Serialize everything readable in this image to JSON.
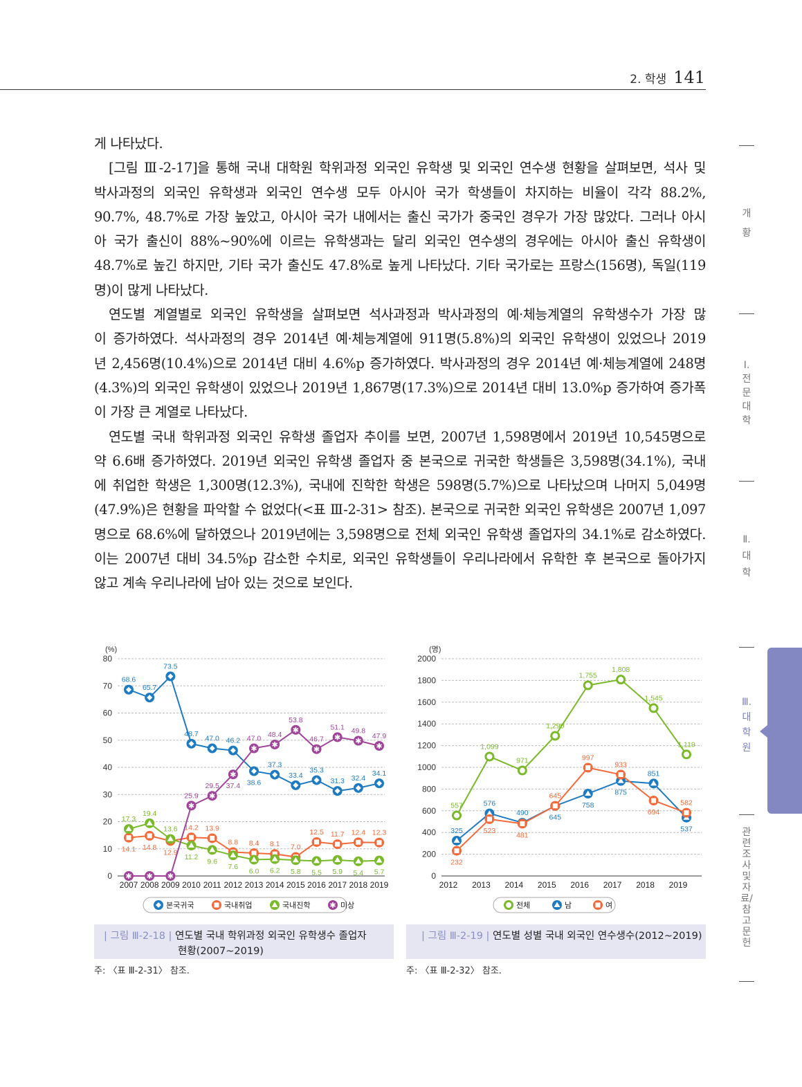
{
  "header": {
    "section": "2. 학생",
    "page_number": "141"
  },
  "body": {
    "lines": [
      {
        "text": "게 나타났다.",
        "last": true
      },
      {
        "text": "[그림 Ⅲ-2-17]을 통해 국내 대학원 학위과정 외국인 유학생 및 외국인 연수생 현황을 살펴보면, 석사 및",
        "indent": true
      },
      {
        "text": "박사과정의 외국인 유학생과 외국인 연수생 모두 아시아 국가 학생들이 차지하는 비율이 각각 88.2%,"
      },
      {
        "text": "90.7%, 48.7%로 가장 높았고, 아시아 국가 내에서는 출신 국가가 중국인 경우가 가장 많았다. 그러나 아시"
      },
      {
        "text": "아 국가 출신이 88%~90%에 이르는 유학생과는 달리 외국인 연수생의 경우에는 아시아 출신 유학생이"
      },
      {
        "text": "48.7%로 높긴 하지만, 기타 국가 출신도 47.8%로 높게 나타났다. 기타 국가로는 프랑스(156명), 독일(119"
      },
      {
        "text": "명)이 많게 나타났다.",
        "last": true
      },
      {
        "text": "연도별 계열별로 외국인 유학생을 살펴보면 석사과정과 박사과정의 예·체능계열의 유학생수가 가장 많",
        "indent": true
      },
      {
        "text": "이 증가하였다. 석사과정의 경우 2014년 예·체능계열에 911명(5.8%)의 외국인 유학생이 있었으나 2019"
      },
      {
        "text": "년 2,456명(10.4%)으로 2014년 대비 4.6%p 증가하였다. 박사과정의 경우 2014년 예·체능계열에 248명"
      },
      {
        "text": "(4.3%)의 외국인 유학생이 있었으나 2019년 1,867명(17.3%)으로 2014년 대비 13.0%p 증가하여 증가폭"
      },
      {
        "text": "이 가장 큰 계열로 나타났다.",
        "last": true
      },
      {
        "text": "연도별 국내 학위과정 외국인 유학생 졸업자 추이를 보면, 2007년 1,598명에서 2019년 10,545명으로",
        "indent": true
      },
      {
        "text": "약 6.6배 증가하였다. 2019년 외국인 유학생 졸업자 중 본국으로 귀국한 학생들은 3,598명(34.1%), 국내"
      },
      {
        "text": "에 취업한 학생은 1,300명(12.3%), 국내에 진학한 학생은 598명(5.7%)으로 나타났으며 나머지 5,049명"
      },
      {
        "text": "(47.9%)은 현황을 파악할 수 없었다(<표 Ⅲ-2-31> 참조). 본국으로 귀국한 외국인 유학생은 2007년 1,097"
      },
      {
        "text": "명으로 68.6%에 달하였으나 2019년에는 3,598명으로 전체 외국인 유학생 졸업자의 34.1%로 감소하였다."
      },
      {
        "text": "이는 2007년 대비 34.5%p 감소한 수치로, 외국인 유학생들이 우리나라에서 유학한 후 본국으로 돌아가지"
      },
      {
        "text": "않고 계속 우리나라에 남아 있는 것으로 보인다.",
        "last": true
      }
    ]
  },
  "chart_data": [
    {
      "type": "line",
      "unit_label": "(%)",
      "ylim": [
        0,
        80
      ],
      "yticks": [
        0,
        10,
        20,
        30,
        40,
        50,
        60,
        70,
        80
      ],
      "x": [
        "2007",
        "2008",
        "2009",
        "2010",
        "2011",
        "2012",
        "2013",
        "2014",
        "2015",
        "2016",
        "2017",
        "2018",
        "2019"
      ],
      "series": [
        {
          "name": "본국귀국",
          "color": "#1f7bc1",
          "marker": "diamond",
          "values": [
            68.6,
            65.7,
            73.5,
            48.7,
            47.0,
            46.2,
            38.6,
            37.3,
            33.4,
            35.3,
            31.3,
            32.4,
            34.1
          ]
        },
        {
          "name": "국내취업",
          "color": "#f26a3a",
          "marker": "square",
          "values": [
            14.1,
            14.8,
            12.9,
            14.2,
            13.9,
            8.8,
            8.4,
            8.1,
            7.0,
            12.5,
            11.7,
            12.4,
            12.3
          ]
        },
        {
          "name": "국내진학",
          "color": "#7ab929",
          "marker": "triangle",
          "values": [
            17.3,
            19.4,
            13.6,
            11.2,
            9.6,
            7.6,
            6.0,
            6.2,
            5.8,
            5.5,
            5.9,
            5.4,
            5.7
          ]
        },
        {
          "name": "미상",
          "color": "#a0449a",
          "marker": "asterisk",
          "values": [
            0,
            0,
            0,
            25.9,
            29.5,
            37.4,
            47.0,
            48.4,
            53.8,
            46.7,
            51.1,
            49.8,
            47.9
          ]
        }
      ],
      "legend": "bottom"
    },
    {
      "type": "line",
      "unit_label": "(명)",
      "ylim": [
        0,
        2000
      ],
      "yticks": [
        0,
        200,
        400,
        600,
        800,
        1000,
        1200,
        1400,
        1600,
        1800,
        2000
      ],
      "x": [
        "2012",
        "2013",
        "2014",
        "2015",
        "2016",
        "2017",
        "2018",
        "2019"
      ],
      "series": [
        {
          "name": "전체",
          "color": "#7ab929",
          "marker": "circle",
          "values": [
            557,
            1099,
            971,
            1290,
            1755,
            1808,
            1545,
            1119
          ]
        },
        {
          "name": "남",
          "color": "#1f7bc1",
          "marker": "triangle",
          "values": [
            325,
            576,
            490,
            645,
            758,
            875,
            851,
            537
          ]
        },
        {
          "name": "여",
          "color": "#f26a3a",
          "marker": "square",
          "values": [
            232,
            523,
            481,
            645,
            997,
            933,
            694,
            582
          ]
        }
      ],
      "legend": "bottom"
    }
  ],
  "captions": [
    {
      "label": "| 그림 Ⅲ-2-18 |",
      "title": "연도별 국내 학위과정 외국인 유학생수 졸업자",
      "title2": "현황(2007~2019)",
      "note": "주: 〈표 Ⅲ-2-31〉 참조."
    },
    {
      "label": "| 그림 Ⅲ-2-19 |",
      "title": "연도별 성별 국내 외국인 연수생수(2012~2019)",
      "note": "주: 〈표 Ⅲ-2-32〉 참조."
    }
  ],
  "side_nav": [
    "개 황",
    "Ⅰ. 전문대학",
    "Ⅱ. 대 학",
    "Ⅲ. 대학원",
    "관련조사 및 자료/참고문헌"
  ],
  "side_nav_active": "Ⅲ. 대학원"
}
